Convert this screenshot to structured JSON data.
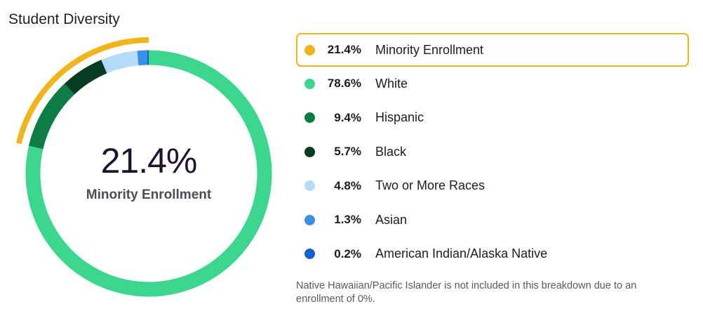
{
  "title": "Student Diversity",
  "center": {
    "value": "21.4%",
    "label": "Minority Enrollment"
  },
  "colors": {
    "minority": "#f0b41c",
    "white": "#3dd68f",
    "hispanic": "#0e7c45",
    "black": "#063d22",
    "two_or_more": "#b4dcfa",
    "asian": "#3b8ee8",
    "american_indian": "#1460d2"
  },
  "chart_data": {
    "type": "pie",
    "categories": [
      "Minority Enrollment",
      "White",
      "Hispanic",
      "Black",
      "Two or More Races",
      "Asian",
      "American Indian/Alaska Native"
    ],
    "values": [
      21.4,
      78.6,
      9.4,
      5.7,
      4.8,
      1.3,
      0.2
    ],
    "ring_segments": [
      {
        "name": "White",
        "value": 78.6,
        "color": "#3dd68f"
      },
      {
        "name": "Hispanic",
        "value": 9.4,
        "color": "#0e7c45"
      },
      {
        "name": "Black",
        "value": 5.7,
        "color": "#063d22"
      },
      {
        "name": "Two or More Races",
        "value": 4.8,
        "color": "#b4dcfa"
      },
      {
        "name": "Asian",
        "value": 1.3,
        "color": "#3b8ee8"
      },
      {
        "name": "American Indian/Alaska Native",
        "value": 0.2,
        "color": "#1460d2"
      }
    ],
    "highlight_arc": {
      "name": "Minority Enrollment",
      "value": 21.4,
      "color": "#f0b41c"
    },
    "legend_placement": "right"
  },
  "legend": [
    {
      "pct": "21.4%",
      "label": "Minority Enrollment",
      "color": "#f0b41c",
      "highlight": true
    },
    {
      "pct": "78.6%",
      "label": "White",
      "color": "#3dd68f",
      "highlight": false
    },
    {
      "pct": "9.4%",
      "label": "Hispanic",
      "color": "#0e7c45",
      "highlight": false
    },
    {
      "pct": "5.7%",
      "label": "Black",
      "color": "#063d22",
      "highlight": false
    },
    {
      "pct": "4.8%",
      "label": "Two or More Races",
      "color": "#b4dcfa",
      "highlight": false
    },
    {
      "pct": "1.3%",
      "label": "Asian",
      "color": "#3b8ee8",
      "highlight": false
    },
    {
      "pct": "0.2%",
      "label": "American Indian/Alaska Native",
      "color": "#1460d2",
      "highlight": false
    }
  ],
  "footnote": "Native Hawaiian/Pacific Islander is not included in this breakdown due to an enrollment of 0%."
}
